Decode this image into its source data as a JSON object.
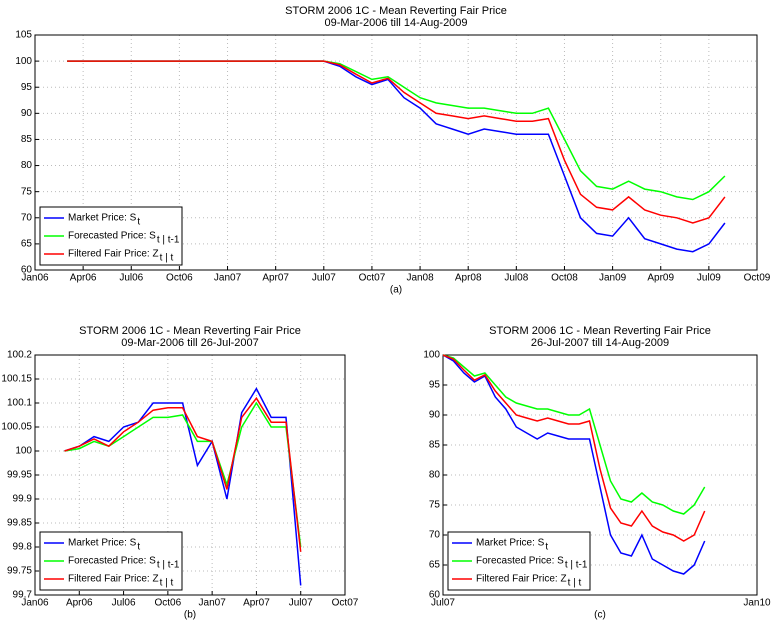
{
  "chart_data": [
    {
      "type": "line",
      "title": "STORM 2006 1C - Mean Reverting Fair Price",
      "subtitle": "09-Mar-2006 till 14-Aug-2009",
      "xlabel": "(a)",
      "grid": true,
      "legend": "lower left",
      "xlim": [
        "2006-01",
        "2009-10"
      ],
      "xticks": [
        {
          "value": "2006-01",
          "label": "Jan06"
        },
        {
          "value": "2006-04",
          "label": "Apr06"
        },
        {
          "value": "2006-07",
          "label": "Jul06"
        },
        {
          "value": "2006-10",
          "label": "Oct06"
        },
        {
          "value": "2007-01",
          "label": "Jan07"
        },
        {
          "value": "2007-04",
          "label": "Apr07"
        },
        {
          "value": "2007-07",
          "label": "Jul07"
        },
        {
          "value": "2007-10",
          "label": "Oct07"
        },
        {
          "value": "2008-01",
          "label": "Jan08"
        },
        {
          "value": "2008-04",
          "label": "Apr08"
        },
        {
          "value": "2008-07",
          "label": "Jul08"
        },
        {
          "value": "2008-10",
          "label": "Oct08"
        },
        {
          "value": "2009-01",
          "label": "Jan09"
        },
        {
          "value": "2009-04",
          "label": "Apr09"
        },
        {
          "value": "2009-07",
          "label": "Jul09"
        },
        {
          "value": "2009-10",
          "label": "Oct09"
        }
      ],
      "ylim": [
        60,
        105
      ],
      "yticks": [
        60,
        65,
        70,
        75,
        80,
        85,
        90,
        95,
        100,
        105
      ],
      "x": [
        "2006-03",
        "2006-04",
        "2006-05",
        "2006-06",
        "2006-07",
        "2006-08",
        "2006-09",
        "2006-10",
        "2006-11",
        "2006-12",
        "2007-01",
        "2007-02",
        "2007-03",
        "2007-04",
        "2007-05",
        "2007-06",
        "2007-07",
        "2007-08",
        "2007-09",
        "2007-10",
        "2007-11",
        "2007-12",
        "2008-01",
        "2008-02",
        "2008-03",
        "2008-04",
        "2008-05",
        "2008-06",
        "2008-07",
        "2008-08",
        "2008-09",
        "2008-10",
        "2008-11",
        "2008-12",
        "2009-01",
        "2009-02",
        "2009-03",
        "2009-04",
        "2009-05",
        "2009-06",
        "2009-07",
        "2009-08"
      ],
      "series": [
        {
          "name": "Market Price: S",
          "subscript": "t",
          "color": "#0000ff",
          "values": [
            100,
            100,
            100,
            100,
            100,
            100,
            100,
            100,
            100,
            100,
            100,
            100,
            100,
            100,
            100,
            100,
            100,
            99,
            97,
            95.5,
            96.5,
            93,
            91,
            88,
            87,
            86,
            87,
            86.5,
            86,
            86,
            86,
            78,
            70,
            67,
            66.5,
            70,
            66,
            65,
            64,
            63.5,
            65,
            69
          ]
        },
        {
          "name": "Forecasted Price: S",
          "subscript": "t | t-1",
          "color": "#00ff00",
          "values": [
            100,
            100,
            100,
            100,
            100,
            100,
            100,
            100,
            100,
            100,
            100,
            100,
            100,
            100,
            100,
            100,
            100,
            99.5,
            98,
            96.5,
            97,
            95,
            93,
            92,
            91.5,
            91,
            91,
            90.5,
            90,
            90,
            91,
            85,
            79,
            76,
            75.5,
            77,
            75.5,
            75,
            74,
            73.5,
            75,
            78
          ]
        },
        {
          "name": "Filtered Fair Price: Z",
          "subscript": "t | t",
          "color": "#ff0000",
          "values": [
            100,
            100,
            100,
            100,
            100,
            100,
            100,
            100,
            100,
            100,
            100,
            100,
            100,
            100,
            100,
            100,
            100,
            99.3,
            97.5,
            95.8,
            96.7,
            94,
            92,
            90,
            89.5,
            89,
            89.5,
            89,
            88.5,
            88.5,
            89,
            81,
            74.5,
            72,
            71.5,
            74,
            71.5,
            70.5,
            70,
            69,
            70,
            74
          ]
        }
      ]
    },
    {
      "type": "line",
      "title": "STORM 2006 1C - Mean Reverting Fair Price",
      "subtitle": "09-Mar-2006 till 26-Jul-2007",
      "xlabel": "(b)",
      "grid": true,
      "legend": "lower left",
      "xlim": [
        "2006-01",
        "2007-10"
      ],
      "xticks": [
        {
          "value": "2006-01",
          "label": "Jan06"
        },
        {
          "value": "2006-04",
          "label": "Apr06"
        },
        {
          "value": "2006-07",
          "label": "Jul06"
        },
        {
          "value": "2006-10",
          "label": "Oct06"
        },
        {
          "value": "2007-01",
          "label": "Jan07"
        },
        {
          "value": "2007-04",
          "label": "Apr07"
        },
        {
          "value": "2007-07",
          "label": "Jul07"
        },
        {
          "value": "2007-10",
          "label": "Oct07"
        }
      ],
      "ylim": [
        99.7,
        100.2
      ],
      "yticks": [
        99.7,
        99.75,
        99.8,
        99.85,
        99.9,
        99.95,
        100,
        100.05,
        100.1,
        100.15,
        100.2
      ],
      "x": [
        "2006-03",
        "2006-04",
        "2006-05",
        "2006-06",
        "2006-07",
        "2006-08",
        "2006-09",
        "2006-10",
        "2006-11",
        "2006-12",
        "2007-01",
        "2007-02",
        "2007-03",
        "2007-04",
        "2007-05",
        "2007-06",
        "2007-07"
      ],
      "series": [
        {
          "name": "Market Price: S",
          "subscript": "t",
          "color": "#0000ff",
          "values": [
            100,
            100.01,
            100.03,
            100.02,
            100.05,
            100.06,
            100.1,
            100.1,
            100.1,
            99.97,
            100.02,
            99.9,
            100.08,
            100.13,
            100.07,
            100.07,
            99.72
          ]
        },
        {
          "name": "Forecasted Price: S",
          "subscript": "t | t-1",
          "color": "#00ff00",
          "values": [
            100,
            100.005,
            100.02,
            100.01,
            100.03,
            100.05,
            100.07,
            100.07,
            100.075,
            100.02,
            100.02,
            99.93,
            100.05,
            100.1,
            100.05,
            100.05,
            99.8
          ]
        },
        {
          "name": "Filtered Fair Price: Z",
          "subscript": "t | t",
          "color": "#ff0000",
          "values": [
            100,
            100.01,
            100.025,
            100.01,
            100.04,
            100.06,
            100.085,
            100.09,
            100.09,
            100.03,
            100.02,
            99.92,
            100.07,
            100.11,
            100.06,
            100.06,
            99.79
          ]
        }
      ]
    },
    {
      "type": "line",
      "title": "STORM 2006 1C - Mean Reverting Fair Price",
      "subtitle": "26-Jul-2007 till 14-Aug-2009",
      "xlabel": "(c)",
      "grid": true,
      "legend": "lower left",
      "xlim": [
        "2007-07",
        "2010-01"
      ],
      "xticks": [
        {
          "value": "2007-07",
          "label": "Jul07"
        },
        {
          "value": "2010-01",
          "label": "Jan10"
        }
      ],
      "ylim": [
        60,
        100
      ],
      "yticks": [
        60,
        65,
        70,
        75,
        80,
        85,
        90,
        95,
        100
      ],
      "x": [
        "2007-07",
        "2007-08",
        "2007-09",
        "2007-10",
        "2007-11",
        "2007-12",
        "2008-01",
        "2008-02",
        "2008-03",
        "2008-04",
        "2008-05",
        "2008-06",
        "2008-07",
        "2008-08",
        "2008-09",
        "2008-10",
        "2008-11",
        "2008-12",
        "2009-01",
        "2009-02",
        "2009-03",
        "2009-04",
        "2009-05",
        "2009-06",
        "2009-07",
        "2009-08"
      ],
      "series": [
        {
          "name": "Market Price: S",
          "subscript": "t",
          "color": "#0000ff",
          "values": [
            100,
            99,
            97,
            95.5,
            96.5,
            93,
            91,
            88,
            87,
            86,
            87,
            86.5,
            86,
            86,
            86,
            78,
            70,
            67,
            66.5,
            70,
            66,
            65,
            64,
            63.5,
            65,
            69
          ]
        },
        {
          "name": "Forecasted Price: S",
          "subscript": "t | t-1",
          "color": "#00ff00",
          "values": [
            100,
            99.5,
            98,
            96.5,
            97,
            95,
            93,
            92,
            91.5,
            91,
            91,
            90.5,
            90,
            90,
            91,
            85,
            79,
            76,
            75.5,
            77,
            75.5,
            75,
            74,
            73.5,
            75,
            78
          ]
        },
        {
          "name": "Filtered Fair Price: Z",
          "subscript": "t | t",
          "color": "#ff0000",
          "values": [
            100,
            99.3,
            97.5,
            95.8,
            96.7,
            94,
            92,
            90,
            89.5,
            89,
            89.5,
            89,
            88.5,
            88.5,
            89,
            81,
            74.5,
            72,
            71.5,
            74,
            71.5,
            70.5,
            70,
            69,
            70,
            74
          ]
        }
      ]
    }
  ]
}
